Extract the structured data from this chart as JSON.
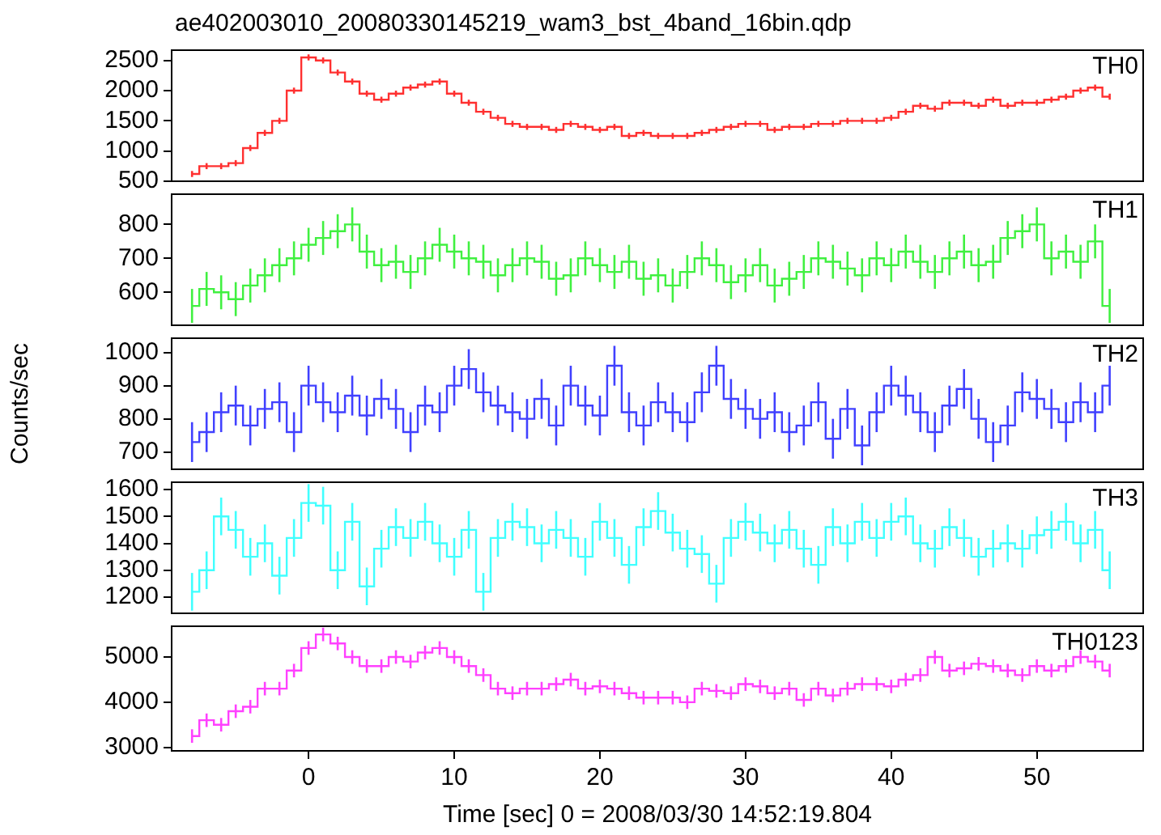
{
  "chart_data": [
    {
      "type": "step",
      "title": "ae402003010_20080330145219_wam3_bst_4band_16bin.qdp",
      "legend": "top right",
      "tick_labels": "y",
      "x": [
        -8,
        -7,
        -6,
        -5,
        -4,
        -3,
        -2,
        -1,
        0,
        1,
        2,
        3,
        4,
        5,
        6,
        7,
        8,
        9,
        10,
        11,
        12,
        13,
        14,
        15,
        16,
        17,
        18,
        19,
        20,
        21,
        22,
        23,
        24,
        25,
        26,
        27,
        28,
        29,
        30,
        31,
        32,
        33,
        34,
        35,
        36,
        37,
        38,
        39,
        40,
        41,
        42,
        43,
        44,
        45,
        46,
        47,
        48,
        49,
        50,
        51,
        52,
        53,
        54,
        55
      ],
      "xlim": [
        -9.4,
        57.3
      ],
      "xticks": [
        0,
        10,
        20,
        30,
        40,
        50
      ],
      "ylim": [
        500,
        2670
      ],
      "yticks": [
        500,
        1000,
        1500,
        2000,
        2500
      ],
      "series": [
        {
          "name": "TH0",
          "color": "#ff3030",
          "values": [
            620,
            750,
            750,
            800,
            1050,
            1300,
            1500,
            2000,
            2550,
            2500,
            2300,
            2150,
            1950,
            1850,
            1950,
            2050,
            2100,
            2150,
            1950,
            1800,
            1650,
            1550,
            1450,
            1400,
            1400,
            1350,
            1450,
            1400,
            1350,
            1400,
            1250,
            1300,
            1250,
            1250,
            1250,
            1300,
            1350,
            1400,
            1450,
            1450,
            1350,
            1400,
            1400,
            1450,
            1450,
            1500,
            1500,
            1500,
            1550,
            1650,
            1750,
            1700,
            1800,
            1800,
            1750,
            1850,
            1750,
            1800,
            1800,
            1850,
            1900,
            2000,
            2050,
            1900
          ],
          "errors": [
            50,
            50,
            50,
            50,
            50,
            50,
            50,
            50,
            50,
            50,
            50,
            50,
            50,
            50,
            50,
            50,
            50,
            50,
            50,
            50,
            50,
            50,
            50,
            50,
            50,
            50,
            50,
            50,
            50,
            50,
            50,
            50,
            50,
            50,
            50,
            50,
            50,
            50,
            50,
            50,
            50,
            50,
            50,
            50,
            50,
            50,
            50,
            50,
            50,
            50,
            50,
            50,
            50,
            50,
            50,
            50,
            50,
            50,
            50,
            50,
            50,
            50,
            50,
            50
          ]
        }
      ]
    },
    {
      "type": "step",
      "legend": "top right",
      "tick_labels": "y",
      "x": [
        -8,
        -7,
        -6,
        -5,
        -4,
        -3,
        -2,
        -1,
        0,
        1,
        2,
        3,
        4,
        5,
        6,
        7,
        8,
        9,
        10,
        11,
        12,
        13,
        14,
        15,
        16,
        17,
        18,
        19,
        20,
        21,
        22,
        23,
        24,
        25,
        26,
        27,
        28,
        29,
        30,
        31,
        32,
        33,
        34,
        35,
        36,
        37,
        38,
        39,
        40,
        41,
        42,
        43,
        44,
        45,
        46,
        47,
        48,
        49,
        50,
        51,
        52,
        53,
        54,
        55
      ],
      "xlim": [
        -9.4,
        57.3
      ],
      "xticks": [
        0,
        10,
        20,
        30,
        40,
        50
      ],
      "ylim": [
        503,
        889
      ],
      "yticks": [
        600,
        700,
        800
      ],
      "series": [
        {
          "name": "TH1",
          "color": "#40f040",
          "values": [
            560,
            610,
            600,
            580,
            620,
            650,
            680,
            700,
            740,
            760,
            780,
            800,
            720,
            680,
            690,
            660,
            700,
            740,
            720,
            700,
            690,
            650,
            680,
            700,
            690,
            640,
            650,
            700,
            680,
            660,
            690,
            640,
            650,
            620,
            660,
            700,
            680,
            630,
            650,
            680,
            620,
            640,
            660,
            700,
            690,
            670,
            650,
            700,
            680,
            720,
            690,
            660,
            700,
            720,
            680,
            690,
            760,
            780,
            800,
            700,
            720,
            690,
            750,
            560
          ],
          "errors": [
            50,
            50,
            50,
            50,
            50,
            50,
            50,
            50,
            50,
            50,
            50,
            50,
            50,
            50,
            50,
            50,
            50,
            50,
            50,
            50,
            50,
            50,
            50,
            50,
            50,
            50,
            50,
            50,
            50,
            50,
            50,
            50,
            50,
            50,
            50,
            50,
            50,
            50,
            50,
            50,
            50,
            50,
            50,
            50,
            50,
            50,
            50,
            50,
            50,
            50,
            50,
            50,
            50,
            50,
            50,
            50,
            50,
            50,
            50,
            50,
            50,
            50,
            50,
            50
          ]
        }
      ]
    },
    {
      "type": "step",
      "ylabel": "Counts/sec",
      "legend": "top right",
      "tick_labels": "y",
      "x": [
        -8,
        -7,
        -6,
        -5,
        -4,
        -3,
        -2,
        -1,
        0,
        1,
        2,
        3,
        4,
        5,
        6,
        7,
        8,
        9,
        10,
        11,
        12,
        13,
        14,
        15,
        16,
        17,
        18,
        19,
        20,
        21,
        22,
        23,
        24,
        25,
        26,
        27,
        28,
        29,
        30,
        31,
        32,
        33,
        34,
        35,
        36,
        37,
        38,
        39,
        40,
        41,
        42,
        43,
        44,
        45,
        46,
        47,
        48,
        49,
        50,
        51,
        52,
        53,
        54,
        55
      ],
      "xlim": [
        -9.4,
        57.3
      ],
      "xticks": [
        0,
        10,
        20,
        30,
        40,
        50
      ],
      "ylim": [
        648,
        1043
      ],
      "yticks": [
        700,
        800,
        900,
        1000
      ],
      "series": [
        {
          "name": "TH2",
          "color": "#4040ff",
          "values": [
            730,
            760,
            820,
            840,
            780,
            830,
            850,
            760,
            900,
            850,
            820,
            870,
            810,
            860,
            830,
            760,
            840,
            820,
            900,
            950,
            880,
            840,
            820,
            800,
            860,
            780,
            900,
            840,
            810,
            960,
            820,
            780,
            850,
            820,
            790,
            880,
            960,
            860,
            830,
            800,
            820,
            760,
            780,
            850,
            740,
            830,
            720,
            820,
            900,
            870,
            820,
            760,
            840,
            890,
            800,
            730,
            780,
            880,
            860,
            830,
            790,
            850,
            820,
            900
          ],
          "errors": [
            60,
            60,
            60,
            60,
            60,
            60,
            60,
            60,
            60,
            60,
            60,
            60,
            60,
            60,
            60,
            60,
            60,
            60,
            60,
            60,
            60,
            60,
            60,
            60,
            60,
            60,
            60,
            60,
            60,
            60,
            60,
            60,
            60,
            60,
            60,
            60,
            60,
            60,
            60,
            60,
            60,
            60,
            60,
            60,
            60,
            60,
            60,
            60,
            60,
            60,
            60,
            60,
            60,
            60,
            60,
            60,
            60,
            60,
            60,
            60,
            60,
            60,
            60,
            60
          ]
        }
      ]
    },
    {
      "type": "step",
      "legend": "top right",
      "tick_labels": "y",
      "x": [
        -8,
        -7,
        -6,
        -5,
        -4,
        -3,
        -2,
        -1,
        0,
        1,
        2,
        3,
        4,
        5,
        6,
        7,
        8,
        9,
        10,
        11,
        12,
        13,
        14,
        15,
        16,
        17,
        18,
        19,
        20,
        21,
        22,
        23,
        24,
        25,
        26,
        27,
        28,
        29,
        30,
        31,
        32,
        33,
        34,
        35,
        36,
        37,
        38,
        39,
        40,
        41,
        42,
        43,
        44,
        45,
        46,
        47,
        48,
        49,
        50,
        51,
        52,
        53,
        54,
        55
      ],
      "xlim": [
        -9.4,
        57.3
      ],
      "xticks": [
        0,
        10,
        20,
        30,
        40,
        50
      ],
      "ylim": [
        1140,
        1627
      ],
      "yticks": [
        1200,
        1300,
        1400,
        1500,
        1600
      ],
      "series": [
        {
          "name": "TH3",
          "color": "#40ffff",
          "values": [
            1220,
            1300,
            1500,
            1450,
            1350,
            1400,
            1280,
            1420,
            1550,
            1540,
            1300,
            1480,
            1240,
            1380,
            1460,
            1420,
            1480,
            1400,
            1350,
            1450,
            1220,
            1420,
            1480,
            1460,
            1400,
            1450,
            1420,
            1350,
            1480,
            1420,
            1320,
            1460,
            1520,
            1440,
            1380,
            1360,
            1250,
            1420,
            1480,
            1440,
            1400,
            1450,
            1380,
            1320,
            1460,
            1400,
            1480,
            1420,
            1480,
            1500,
            1400,
            1380,
            1460,
            1420,
            1350,
            1380,
            1400,
            1380,
            1430,
            1450,
            1480,
            1400,
            1450,
            1300
          ],
          "errors": [
            70,
            70,
            70,
            70,
            70,
            70,
            70,
            70,
            70,
            70,
            70,
            70,
            70,
            70,
            70,
            70,
            70,
            70,
            70,
            70,
            70,
            70,
            70,
            70,
            70,
            70,
            70,
            70,
            70,
            70,
            70,
            70,
            70,
            70,
            70,
            70,
            70,
            70,
            70,
            70,
            70,
            70,
            70,
            70,
            70,
            70,
            70,
            70,
            70,
            70,
            70,
            70,
            70,
            70,
            70,
            70,
            70,
            70,
            70,
            70,
            70,
            70,
            70,
            70
          ]
        }
      ]
    },
    {
      "type": "step",
      "xlabel": "Time [sec] 0 = 2008/03/30 14:52:19.804",
      "legend": "top right",
      "x": [
        -8,
        -7,
        -6,
        -5,
        -4,
        -3,
        -2,
        -1,
        0,
        1,
        2,
        3,
        4,
        5,
        6,
        7,
        8,
        9,
        10,
        11,
        12,
        13,
        14,
        15,
        16,
        17,
        18,
        19,
        20,
        21,
        22,
        23,
        24,
        25,
        26,
        27,
        28,
        29,
        30,
        31,
        32,
        33,
        34,
        35,
        36,
        37,
        38,
        39,
        40,
        41,
        42,
        43,
        44,
        45,
        46,
        47,
        48,
        49,
        50,
        51,
        52,
        53,
        54,
        55
      ],
      "xlim": [
        -9.4,
        57.3
      ],
      "xticks": [
        0,
        10,
        20,
        30,
        40,
        50
      ],
      "ylim": [
        2922,
        5682
      ],
      "yticks": [
        3000,
        4000,
        5000
      ],
      "series": [
        {
          "name": "TH0123",
          "color": "#ff40ff",
          "values": [
            3250,
            3600,
            3500,
            3800,
            3900,
            4300,
            4300,
            4700,
            5200,
            5500,
            5300,
            5000,
            4800,
            4800,
            5000,
            4900,
            5100,
            5200,
            5000,
            4800,
            4600,
            4300,
            4200,
            4300,
            4300,
            4400,
            4500,
            4300,
            4350,
            4300,
            4200,
            4100,
            4100,
            4100,
            4000,
            4300,
            4250,
            4200,
            4400,
            4350,
            4200,
            4300,
            4050,
            4300,
            4150,
            4300,
            4400,
            4400,
            4350,
            4500,
            4600,
            5000,
            4700,
            4750,
            4850,
            4800,
            4700,
            4600,
            4800,
            4700,
            4800,
            5000,
            4900,
            4700
          ],
          "errors": [
            150,
            150,
            150,
            150,
            150,
            150,
            150,
            150,
            150,
            150,
            150,
            150,
            150,
            150,
            150,
            150,
            150,
            150,
            150,
            150,
            150,
            150,
            150,
            150,
            150,
            150,
            150,
            150,
            150,
            150,
            150,
            150,
            150,
            150,
            150,
            150,
            150,
            150,
            150,
            150,
            150,
            150,
            150,
            150,
            150,
            150,
            150,
            150,
            150,
            150,
            150,
            150,
            150,
            150,
            150,
            150,
            150,
            150,
            150,
            150,
            150,
            150,
            150,
            150
          ]
        }
      ]
    }
  ]
}
